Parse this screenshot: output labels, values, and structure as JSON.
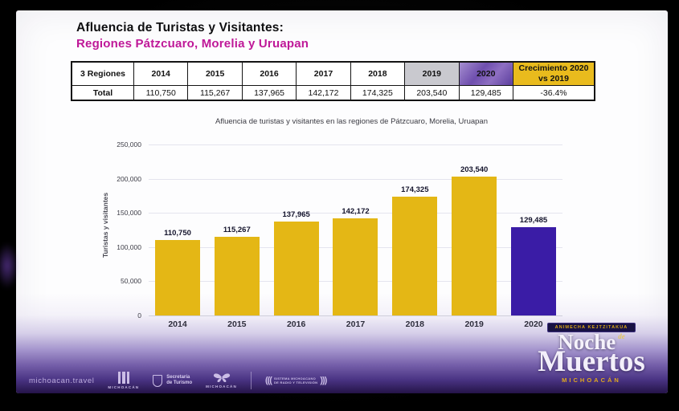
{
  "slide": {
    "title": "Afluencia de Turistas y Visitantes:",
    "subtitle": "Regiones Pátzcuaro, Morelia y Uruapan"
  },
  "table": {
    "columns": [
      "3 Regiones",
      "2014",
      "2015",
      "2016",
      "2017",
      "2018",
      "2019",
      "2020",
      "Crecimiento 2020 vs 2019"
    ],
    "row": [
      "Total",
      "110,750",
      "115,267",
      "137,965",
      "142,172",
      "174,325",
      "203,540",
      "129,485",
      "-36.4%"
    ],
    "colors": {
      "header_2019_bg": "#c9c9cf",
      "header_2020_bg": "#6f4fae",
      "header_growth_bg": "#e9bb1d"
    }
  },
  "chart_data": {
    "type": "bar",
    "title": "Afluencia de turistas y visitantes en las regiones de Pátzcuaro, Morelia, Uruapan",
    "xlabel": "",
    "ylabel": "Turistas y visitantes",
    "categories": [
      "2014",
      "2015",
      "2016",
      "2017",
      "2018",
      "2019",
      "2020"
    ],
    "values": [
      110750,
      115267,
      137965,
      142172,
      174325,
      203540,
      129485
    ],
    "value_labels": [
      "110,750",
      "115,267",
      "137,965",
      "142,172",
      "174,325",
      "203,540",
      "129,485"
    ],
    "ylim": [
      0,
      250000
    ],
    "yticks": [
      250000,
      200000,
      150000,
      100000,
      50000,
      0
    ],
    "ytick_labels": [
      "250,000",
      "200,000",
      "150,000",
      "100,000",
      "50,000",
      "0"
    ],
    "grid": true,
    "legend": "none",
    "bar_color": "#e4b715",
    "bar_color_2020": "#3a1ca6"
  },
  "footer": {
    "website": "michoacan.travel",
    "michoacan_label": "MICHOACÁN",
    "secretaria_line1": "Secretaría",
    "secretaria_line2": "de Turismo",
    "butterfly_label": "MICHOACÁN",
    "radio_line1": "SISTEMA MICHOACANO",
    "radio_line2": "DE RADIO Y TELEVISIÓN"
  },
  "nm_logo": {
    "ribbon": "ANIMECHA KEJTZITAKUA",
    "word1": "Noche",
    "de": "de",
    "word2": "Muertos",
    "region": "MICHOACÁN"
  }
}
